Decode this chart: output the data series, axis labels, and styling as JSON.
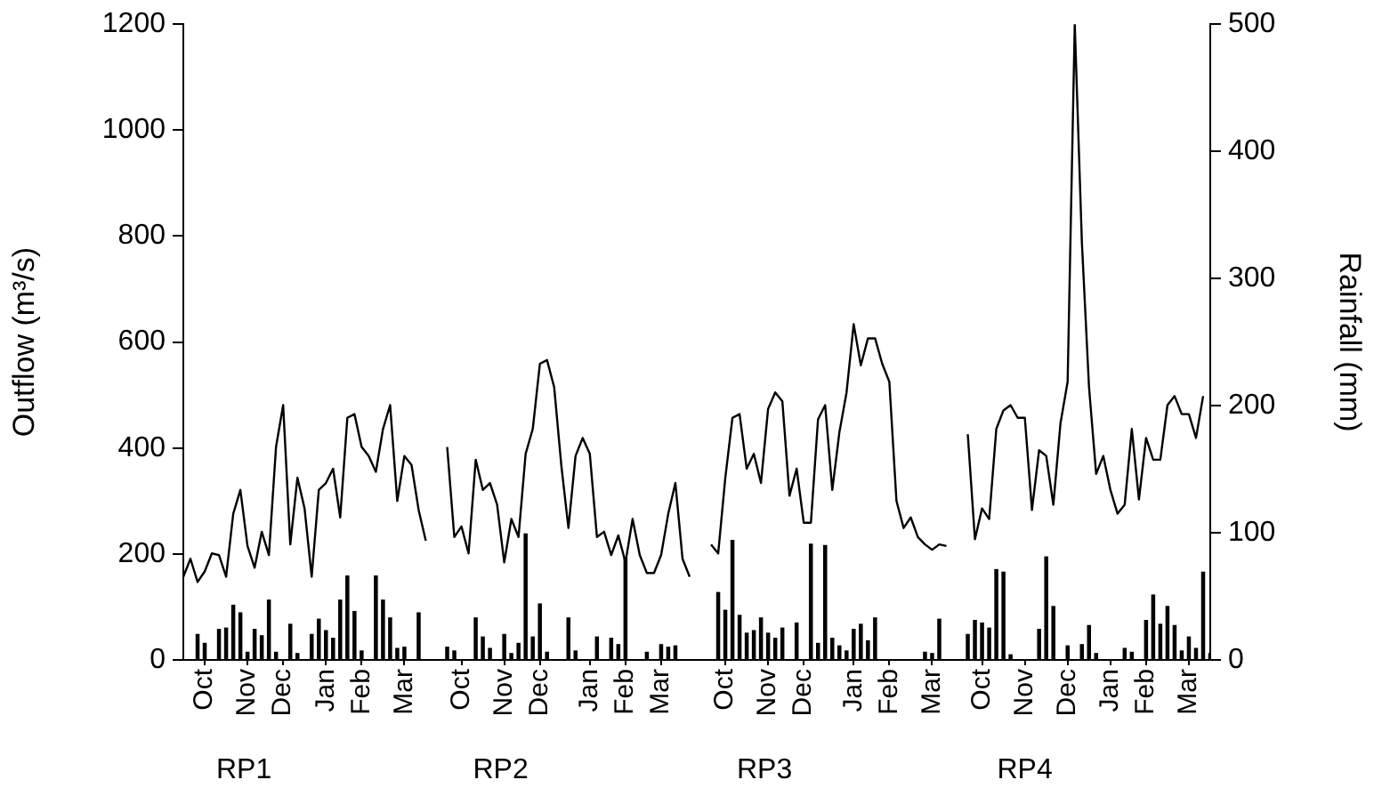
{
  "chart_data": {
    "type": "line",
    "ylabel": "Outflow (m³/s)",
    "y2label": "Rainfall (mm)",
    "categories": [
      null,
      null,
      null,
      "Oct",
      null,
      null,
      null,
      null,
      null,
      "Nov",
      null,
      null,
      null,
      null,
      "Dec",
      null,
      null,
      null,
      null,
      null,
      "Jan",
      null,
      null,
      null,
      null,
      "Feb",
      null,
      null,
      null,
      null,
      null,
      "Mar",
      null,
      null,
      null,
      null,
      null,
      null,
      null,
      "Oct",
      null,
      null,
      null,
      null,
      null,
      "Nov",
      null,
      null,
      null,
      null,
      "Dec",
      null,
      null,
      null,
      null,
      null,
      null,
      "Jan",
      null,
      null,
      null,
      null,
      "Feb",
      null,
      null,
      null,
      null,
      "Mar",
      null,
      null,
      null,
      null,
      null,
      null,
      null,
      null,
      "Oct",
      null,
      null,
      null,
      null,
      null,
      "Nov",
      null,
      null,
      null,
      null,
      "Dec",
      null,
      null,
      null,
      null,
      null,
      null,
      "Jan",
      null,
      null,
      null,
      null,
      "Feb",
      null,
      null,
      null,
      null,
      null,
      "Mar",
      null,
      null,
      null,
      null,
      null,
      null,
      "Oct",
      null,
      null,
      null,
      null,
      null,
      "Nov",
      null,
      null,
      null,
      null,
      null,
      "Dec",
      null,
      null,
      null,
      null,
      null,
      "Jan",
      null,
      null,
      null,
      null,
      "Feb",
      null,
      null,
      null,
      null,
      null,
      "Mar",
      null,
      null,
      null
    ],
    "ylim": [
      0,
      1200
    ],
    "yticks": [
      0,
      200,
      400,
      600,
      800,
      1000,
      1200
    ],
    "y2lim": [
      0,
      500
    ],
    "y2ticks": [
      0,
      100,
      200,
      300,
      400,
      500
    ],
    "grid": false,
    "legend": false,
    "marker": "none",
    "line_style": "solid",
    "annotations": [
      "RP1",
      "RP2",
      "RP3",
      "RP4"
    ],
    "series": [
      {
        "color": "#000000",
        "values": [
          157,
          191,
          147,
          167,
          201,
          198,
          157,
          276,
          321,
          215,
          174,
          242,
          198,
          402,
          481,
          218,
          344,
          286,
          157,
          321,
          334,
          361,
          269,
          457,
          464,
          402,
          385,
          355,
          436,
          481,
          300,
          385,
          368,
          283,
          225,
          null,
          null,
          402,
          232,
          252,
          201,
          378,
          321,
          334,
          293,
          184,
          266,
          232,
          389,
          436,
          559,
          566,
          515,
          368,
          249,
          385,
          419,
          389,
          232,
          242,
          198,
          235,
          184,
          266,
          198,
          164,
          164,
          198,
          276,
          334,
          191,
          157,
          null,
          null,
          218,
          201,
          344,
          457,
          464,
          361,
          389,
          334,
          474,
          505,
          488,
          310,
          361,
          259,
          259,
          454,
          481,
          321,
          430,
          505,
          634,
          556,
          607,
          607,
          559,
          525,
          300,
          249,
          269,
          232,
          218,
          208,
          218,
          215,
          null,
          null,
          426,
          228,
          286,
          266,
          436,
          471,
          481,
          457,
          457,
          283,
          396,
          385,
          293,
          447,
          525,
          1200,
          788,
          515,
          351,
          385,
          321,
          276,
          293,
          436,
          303,
          419,
          378,
          378,
          481,
          498,
          464,
          464,
          419,
          498,
          null
        ]
      },
      {
        "type": "bar",
        "axis": "y2",
        "color": "#000000",
        "values": [
          null,
          null,
          20,
          13,
          null,
          24,
          25,
          43,
          37,
          6,
          24,
          19,
          47,
          6,
          null,
          28,
          5,
          null,
          20,
          32,
          23,
          17,
          47,
          66,
          38,
          7,
          null,
          66,
          47,
          33,
          9,
          10,
          null,
          37,
          null,
          null,
          null,
          10,
          7,
          null,
          null,
          33,
          18,
          9,
          null,
          20,
          5,
          13,
          99,
          18,
          44,
          6,
          null,
          null,
          33,
          7,
          null,
          null,
          18,
          null,
          17,
          12,
          80,
          null,
          null,
          6,
          null,
          12,
          10,
          11,
          null,
          null,
          null,
          null,
          null,
          53,
          39,
          94,
          35,
          21,
          23,
          33,
          21,
          17,
          25,
          null,
          29,
          null,
          91,
          13,
          90,
          17,
          11,
          7,
          24,
          28,
          15,
          33,
          null,
          null,
          null,
          null,
          null,
          null,
          6,
          5,
          32,
          null,
          null,
          null,
          20,
          31,
          29,
          25,
          71,
          69,
          4,
          null,
          null,
          null,
          24,
          81,
          42,
          null,
          11,
          null,
          12,
          27,
          5,
          null,
          null,
          null,
          9,
          6,
          null,
          31,
          51,
          28,
          42,
          27,
          7,
          18,
          9,
          69,
          5
        ]
      }
    ]
  }
}
